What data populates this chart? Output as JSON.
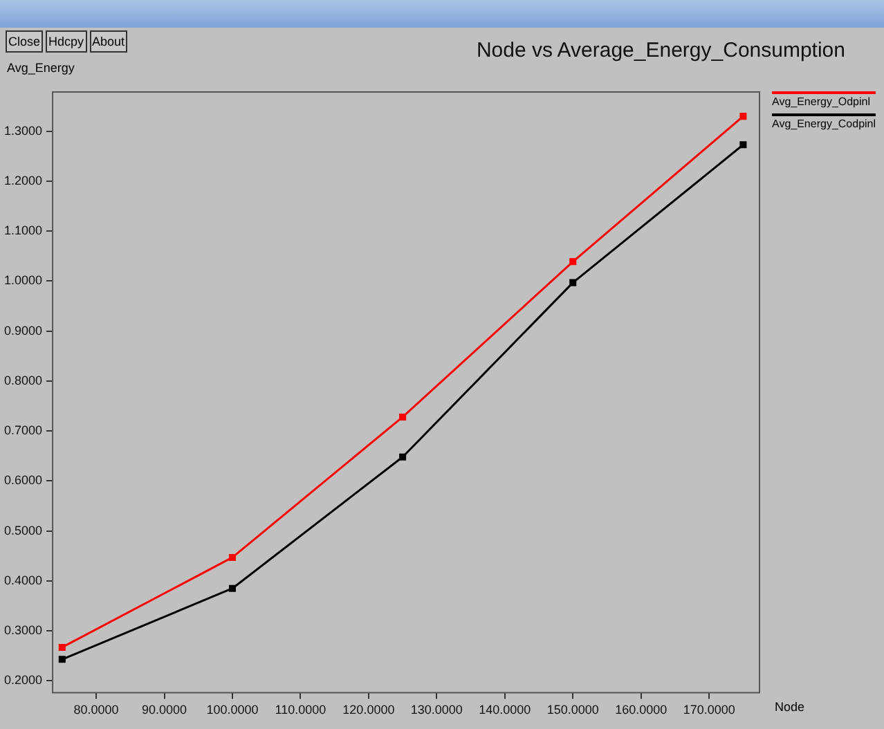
{
  "chart_data": {
    "type": "line",
    "title": "Node vs Average_Energy_Consumption",
    "xlabel": "Node",
    "ylabel": "Avg_Energy",
    "x": [
      75,
      100,
      125,
      150,
      175
    ],
    "series": [
      {
        "name": "Avg_Energy_Odpinl",
        "color": "#ff0000",
        "values": [
          0.267,
          0.447,
          0.728,
          1.039,
          1.33
        ]
      },
      {
        "name": "Avg_Energy_Codpinl",
        "color": "#000000",
        "values": [
          0.243,
          0.385,
          0.648,
          0.997,
          1.273
        ]
      }
    ],
    "xlim": [
      73.5,
      177.5
    ],
    "xticks": [
      {
        "value": 80,
        "label": "80.0000"
      },
      {
        "value": 90,
        "label": "90.0000"
      },
      {
        "value": 100,
        "label": "100.0000"
      },
      {
        "value": 110,
        "label": "110.0000"
      },
      {
        "value": 120,
        "label": "120.0000"
      },
      {
        "value": 130,
        "label": "130.0000"
      },
      {
        "value": 140,
        "label": "140.0000"
      },
      {
        "value": 150,
        "label": "150.0000"
      },
      {
        "value": 160,
        "label": "160.0000"
      },
      {
        "value": 170,
        "label": "170.0000"
      }
    ],
    "ylim": [
      0.175,
      1.38
    ],
    "yticks": [
      {
        "value": 0.2,
        "label": "0.2000"
      },
      {
        "value": 0.3,
        "label": "0.3000"
      },
      {
        "value": 0.4,
        "label": "0.4000"
      },
      {
        "value": 0.5,
        "label": "0.5000"
      },
      {
        "value": 0.6,
        "label": "0.6000"
      },
      {
        "value": 0.7,
        "label": "0.7000"
      },
      {
        "value": 0.8,
        "label": "0.8000"
      },
      {
        "value": 0.9,
        "label": "0.9000"
      },
      {
        "value": 1.0,
        "label": "1.0000"
      },
      {
        "value": 1.1,
        "label": "1.1000"
      },
      {
        "value": 1.2,
        "label": "1.2000"
      },
      {
        "value": 1.3,
        "label": "1.3000"
      }
    ],
    "annotations": [
      "Close",
      "Hdcpy",
      "About"
    ],
    "grid": false,
    "legend": "top right",
    "marker": "square",
    "line_style": "solid"
  }
}
